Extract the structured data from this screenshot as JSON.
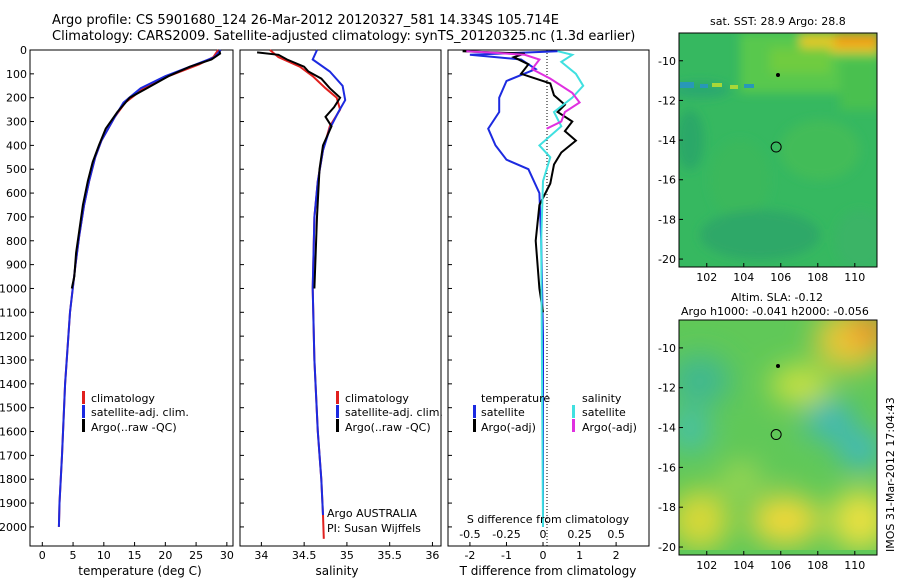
{
  "header": {
    "line1": "Argo profile: CS 5901680_124 26-Mar-2012 20120327_581 14.334S 105.714E",
    "line2": "Climatology: CARS2009. Satellite-adjusted climatology: synTS_20120325.nc (1.3d earlier)"
  },
  "side_label": "IMOS 31-Mar-2012 17:04:43",
  "maps": {
    "sst_title": "sat. SST: 28.9 Argo: 28.8",
    "sla_title1": "Altim. SLA: -0.12",
    "sla_title2": "Argo h1000: -0.041 h2000: -0.056",
    "lon_ticks": [
      "102",
      "104",
      "106",
      "108",
      "110"
    ],
    "lat_ticks": [
      "-10",
      "-12",
      "-14",
      "-16",
      "-18",
      "-20"
    ]
  },
  "colors": {
    "climatology": "#e0201e",
    "satellite": "#1c2ae0",
    "argo": "#000000",
    "sal_satellite": "#40e0e0",
    "sal_argo": "#e030e0"
  },
  "chart_data": [
    {
      "type": "line",
      "xlabel": "temperature (deg C)",
      "ylabel": "",
      "xlim": [
        -2,
        31
      ],
      "ylim": [
        2080,
        0
      ],
      "xticks": [
        "0",
        "5",
        "10",
        "15",
        "20",
        "25",
        "30"
      ],
      "yticks": [
        "0",
        "100",
        "200",
        "300",
        "400",
        "500",
        "600",
        "700",
        "800",
        "900",
        "1000",
        "1100",
        "1200",
        "1300",
        "1400",
        "1500",
        "1600",
        "1700",
        "1800",
        "1900",
        "2000"
      ],
      "legend": [
        "climatology",
        "satellite-adj. clim.",
        "Argo(..raw -QC)"
      ],
      "series": [
        {
          "name": "climatology",
          "x": [
            28.6,
            27.8,
            25.5,
            20.5,
            16.5,
            13.5,
            11.8,
            9.6,
            8.6,
            7.6,
            6.8,
            6.0,
            5.4,
            4.5,
            3.7,
            3.2,
            2.8,
            2.7
          ],
          "y": [
            0,
            30,
            60,
            110,
            160,
            220,
            280,
            380,
            450,
            550,
            650,
            780,
            900,
            1100,
            1400,
            1700,
            1900,
            2000
          ]
        },
        {
          "name": "satellite-adj. clim.",
          "x": [
            29.0,
            28.0,
            25.0,
            20.0,
            16.0,
            13.2,
            11.8,
            9.6,
            8.6,
            7.6,
            6.8,
            6.0,
            5.4,
            4.5,
            3.7,
            3.2,
            2.8,
            2.7
          ],
          "y": [
            0,
            30,
            60,
            110,
            160,
            220,
            280,
            380,
            450,
            550,
            650,
            780,
            900,
            1100,
            1400,
            1700,
            1900,
            2000
          ]
        },
        {
          "name": "Argo(..raw -QC)",
          "x": [
            28.8,
            28.9,
            27.5,
            24.0,
            20.5,
            17.0,
            14.2,
            12.2,
            10.3,
            9.2,
            8.2,
            7.4,
            6.6,
            6.0,
            5.5,
            5.2,
            4.8
          ],
          "y": [
            5,
            15,
            40,
            70,
            110,
            160,
            200,
            260,
            330,
            400,
            470,
            550,
            650,
            760,
            850,
            950,
            1000
          ]
        }
      ]
    },
    {
      "type": "line",
      "xlabel": "salinity",
      "ylabel": "",
      "xlim": [
        33.75,
        36.1
      ],
      "ylim": [
        2080,
        0
      ],
      "xticks": [
        "34",
        "34.5",
        "35",
        "35.5",
        "36"
      ],
      "legend": [
        "climatology",
        "satellite-adj. clim.",
        "Argo(..raw -QC)"
      ],
      "annotations": [
        "Argo AUSTRALIA",
        "PI: Susan Wijffels"
      ],
      "series": [
        {
          "name": "climatology",
          "x": [
            34.1,
            34.2,
            34.45,
            34.6,
            34.75,
            34.88,
            34.92,
            34.8,
            34.72,
            34.66,
            34.62,
            34.6,
            34.62,
            34.66,
            34.7,
            34.72,
            34.73
          ],
          "y": [
            0,
            30,
            70,
            110,
            160,
            200,
            250,
            320,
            420,
            550,
            700,
            1000,
            1300,
            1600,
            1800,
            1950,
            2050
          ]
        },
        {
          "name": "satellite-adj. clim.",
          "x": [
            34.65,
            34.6,
            34.8,
            34.95,
            34.98,
            34.9,
            34.8,
            34.72,
            34.66,
            34.62,
            34.6,
            34.62,
            34.66,
            34.7,
            34.72
          ],
          "y": [
            0,
            40,
            90,
            150,
            210,
            260,
            330,
            420,
            550,
            700,
            1000,
            1300,
            1600,
            1800,
            1950
          ]
        },
        {
          "name": "Argo(..raw -QC)",
          "x": [
            33.95,
            34.2,
            34.3,
            34.5,
            34.55,
            34.7,
            34.8,
            34.92,
            34.85,
            34.75,
            34.82,
            34.72,
            34.68,
            34.65,
            34.62
          ],
          "y": [
            10,
            20,
            40,
            70,
            90,
            120,
            160,
            200,
            240,
            280,
            320,
            400,
            500,
            700,
            1000
          ]
        }
      ]
    },
    {
      "type": "line",
      "xlabel": "T difference from climatology",
      "xlabel_top": "S difference from climatology",
      "xlim": [
        -2.6,
        2.9
      ],
      "ylim": [
        2080,
        0
      ],
      "xticks": [
        "-2",
        "-1",
        "0",
        "1",
        "2"
      ],
      "xticks_top": [
        "-0.5",
        "-0.25",
        "0",
        "0.25",
        "0.5"
      ],
      "legend_left_title": "temperature",
      "legend_right_title": "salinity",
      "legend_left": [
        "satellite",
        "Argo(-adj)"
      ],
      "legend_right": [
        "satellite",
        "Argo(-adj)"
      ],
      "series": [
        {
          "name": "temperature satellite",
          "x": [
            0.4,
            -2.0,
            -0.6,
            -0.2,
            -1.0,
            -1.2,
            -1.2,
            -1.5,
            -1.3,
            -1.0,
            -0.4,
            -0.1,
            -0.05,
            0,
            0
          ],
          "y": [
            5,
            20,
            40,
            80,
            130,
            200,
            260,
            330,
            400,
            460,
            500,
            600,
            800,
            1200,
            2000
          ]
        },
        {
          "name": "temperature Argo(-adj)",
          "x": [
            -2.2,
            -0.5,
            -0.8,
            -0.4,
            -0.6,
            0.2,
            0.3,
            0.6,
            0.4,
            0.8,
            0.6,
            0.9,
            0.5,
            0.3,
            0.2,
            -0.1,
            -0.2,
            -0.1,
            0
          ],
          "y": [
            5,
            15,
            30,
            60,
            100,
            140,
            190,
            230,
            260,
            300,
            340,
            380,
            430,
            480,
            560,
            650,
            800,
            1000,
            1100
          ]
        },
        {
          "name": "salinity satellite",
          "x": [
            0.4,
            0.8,
            0.5,
            0.9,
            1.1,
            0.8,
            0.3,
            0.5,
            -0.1,
            0.2,
            0,
            -0.05,
            0
          ],
          "y": [
            5,
            20,
            50,
            100,
            150,
            200,
            260,
            320,
            400,
            450,
            550,
            800,
            2000
          ]
        },
        {
          "name": "salinity Argo(-adj)",
          "x": [
            -2.1,
            -1.5,
            -0.5,
            -0.1,
            -0.3,
            0.2,
            0.8,
            1.0,
            0.6,
            0.5,
            0.1
          ],
          "y": [
            5,
            10,
            20,
            40,
            80,
            120,
            180,
            220,
            260,
            300,
            330
          ]
        }
      ]
    },
    {
      "type": "heatmap",
      "title": "sat. SST: 28.9 Argo: 28.8",
      "x": [
        100.5,
        111.2
      ],
      "y": [
        -8.6,
        -20.4
      ],
      "marker": [
        105.75,
        -14.35
      ]
    },
    {
      "type": "heatmap",
      "title": "Altim. SLA: -0.12",
      "x": [
        100.5,
        111.2
      ],
      "y": [
        -8.6,
        -20.4
      ],
      "marker": [
        105.75,
        -14.35
      ]
    }
  ]
}
